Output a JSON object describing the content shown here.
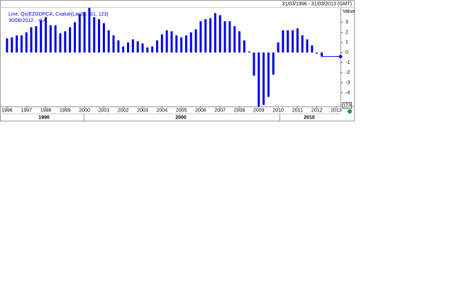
{
  "chart_data": {
    "type": "bar",
    "date_range": "31/03/1996 - 31/03/2013 (GMT)",
    "legend_lines": [
      "Line, Qs(EZGDPCA, Cvalue(Last)), (S1, 123)",
      "30/06/2012 , -0.4"
    ],
    "y_axis_label": "Value",
    "scale_label": "123",
    "decade_labels": [
      "1990",
      "2000",
      "2010"
    ],
    "x": [
      1996,
      1996.25,
      1996.5,
      1996.75,
      1997,
      1997.25,
      1997.5,
      1997.75,
      1998,
      1998.25,
      1998.5,
      1998.75,
      1999,
      1999.25,
      1999.5,
      1999.75,
      2000,
      2000.25,
      2000.5,
      2000.75,
      2001,
      2001.25,
      2001.5,
      2001.75,
      2002,
      2002.25,
      2002.5,
      2002.75,
      2003,
      2003.25,
      2003.5,
      2003.75,
      2004,
      2004.25,
      2004.5,
      2004.75,
      2005,
      2005.25,
      2005.5,
      2005.75,
      2006,
      2006.25,
      2006.5,
      2006.75,
      2007,
      2007.25,
      2007.5,
      2007.75,
      2008,
      2008.25,
      2008.5,
      2008.75,
      2009,
      2009.25,
      2009.5,
      2009.75,
      2010,
      2010.25,
      2010.5,
      2010.75,
      2011,
      2011.25,
      2011.5,
      2011.75,
      2012,
      2012.25
    ],
    "series": [
      {
        "name": "EZGDPCA",
        "color": "#0000e6",
        "values": [
          1.4,
          1.5,
          1.7,
          1.7,
          2.0,
          2.5,
          2.6,
          3.2,
          3.5,
          2.7,
          2.7,
          1.9,
          2.1,
          2.5,
          3.0,
          3.8,
          4.0,
          4.5,
          3.5,
          3.3,
          2.9,
          2.2,
          1.7,
          1.2,
          0.6,
          1.0,
          1.3,
          1.1,
          0.9,
          0.5,
          0.6,
          1.2,
          1.8,
          2.2,
          2.1,
          1.7,
          1.5,
          1.7,
          2.0,
          2.3,
          3.1,
          3.3,
          3.4,
          3.9,
          3.7,
          3.1,
          3.1,
          2.6,
          2.1,
          1.2,
          0.1,
          -2.3,
          -5.4,
          -5.2,
          -4.4,
          -2.2,
          1.0,
          2.2,
          2.2,
          2.2,
          2.4,
          1.7,
          1.3,
          0.7,
          -0.1,
          -0.4
        ]
      }
    ],
    "xlim": [
      1995.71,
      2013.22
    ],
    "xticks": [
      1996,
      1997,
      1998,
      1999,
      2000,
      2001,
      2002,
      2003,
      2004,
      2005,
      2006,
      2007,
      2008,
      2009,
      2010,
      2011,
      2012,
      2013
    ],
    "ylim": [
      -5.35,
      4.5
    ],
    "yticks": [
      3,
      2,
      1,
      0,
      -1,
      -2,
      -3,
      -4
    ]
  }
}
